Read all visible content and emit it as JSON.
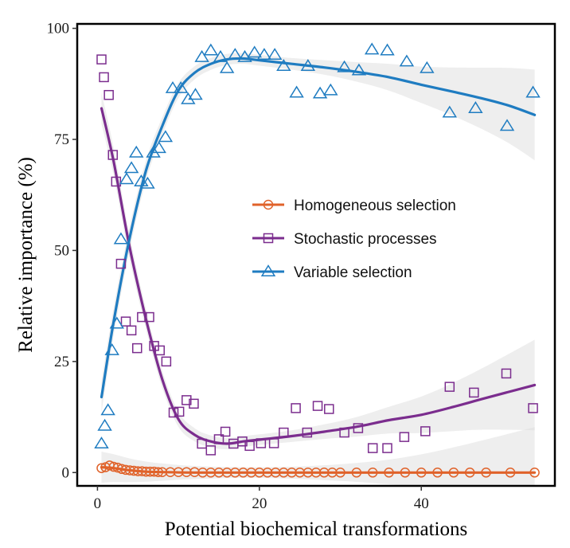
{
  "chart_data": {
    "type": "scatter",
    "title": "",
    "xlabel": "Potential biochemical transformations",
    "ylabel": "Relative importance (%)",
    "xlim": [
      -2.5,
      56.5
    ],
    "ylim": [
      -3,
      101
    ],
    "x_ticks": [
      0,
      20,
      40
    ],
    "y_ticks": [
      0,
      25,
      50,
      75,
      100
    ],
    "grid": false,
    "legend_position": "center-right",
    "series": [
      {
        "name": "Homogeneous selection",
        "color": "#E0622A",
        "marker": "circle",
        "points": [
          [
            0.5,
            1.0
          ],
          [
            1.0,
            1.2
          ],
          [
            1.5,
            1.6
          ],
          [
            2.0,
            1.3
          ],
          [
            2.5,
            1.1
          ],
          [
            3.0,
            0.8
          ],
          [
            3.5,
            0.6
          ],
          [
            4.0,
            0.5
          ],
          [
            4.5,
            0.4
          ],
          [
            5.0,
            0.3
          ],
          [
            5.5,
            0.3
          ],
          [
            6.0,
            0.2
          ],
          [
            6.5,
            0.2
          ],
          [
            7.0,
            0.2
          ],
          [
            7.5,
            0.1
          ],
          [
            8.0,
            0.1
          ],
          [
            9.0,
            0.1
          ],
          [
            10.0,
            0.1
          ],
          [
            11.0,
            0.1
          ],
          [
            12.0,
            0.1
          ],
          [
            13.0,
            0.0
          ],
          [
            14.0,
            0.0
          ],
          [
            15.0,
            0.0
          ],
          [
            16.0,
            0.0
          ],
          [
            17.0,
            0.0
          ],
          [
            18.0,
            0.0
          ],
          [
            19.0,
            0.0
          ],
          [
            20.0,
            0.0
          ],
          [
            21.0,
            0.0
          ],
          [
            22.0,
            0.0
          ],
          [
            23.0,
            0.0
          ],
          [
            24.0,
            0.0
          ],
          [
            25.0,
            0.0
          ],
          [
            26.0,
            0.0
          ],
          [
            27.0,
            0.0
          ],
          [
            28.0,
            0.0
          ],
          [
            29.0,
            0.0
          ],
          [
            30.0,
            0.0
          ],
          [
            32.0,
            0.0
          ],
          [
            34.0,
            0.0
          ],
          [
            36.0,
            0.0
          ],
          [
            38.0,
            0.0
          ],
          [
            40.0,
            0.0
          ],
          [
            42.0,
            0.0
          ],
          [
            44.0,
            0.0
          ],
          [
            46.0,
            0.0
          ],
          [
            48.0,
            0.0
          ],
          [
            51.0,
            0.0
          ],
          [
            54.0,
            0.0
          ]
        ],
        "fit": [
          [
            0.5,
            1.2
          ],
          [
            2.0,
            1.0
          ],
          [
            4.0,
            0.5
          ],
          [
            6.0,
            0.2
          ],
          [
            8.0,
            0.1
          ],
          [
            12.0,
            0.0
          ],
          [
            20.0,
            0.0
          ],
          [
            30.0,
            0.0
          ],
          [
            40.0,
            0.0
          ],
          [
            54.0,
            0.0
          ]
        ]
      },
      {
        "name": "Stochastic processes",
        "color": "#7B2D8E",
        "marker": "square",
        "points": [
          [
            0.5,
            93.0
          ],
          [
            0.8,
            89.0
          ],
          [
            1.4,
            85.0
          ],
          [
            1.9,
            71.5
          ],
          [
            2.3,
            65.5
          ],
          [
            2.9,
            47.0
          ],
          [
            3.5,
            34.0
          ],
          [
            4.2,
            32.0
          ],
          [
            4.9,
            28.0
          ],
          [
            5.5,
            35.0
          ],
          [
            6.4,
            35.0
          ],
          [
            7.0,
            28.5
          ],
          [
            7.7,
            27.5
          ],
          [
            8.5,
            25.0
          ],
          [
            9.4,
            13.5
          ],
          [
            10.1,
            13.7
          ],
          [
            11.0,
            16.3
          ],
          [
            11.9,
            15.5
          ],
          [
            12.9,
            6.5
          ],
          [
            14.0,
            5.0
          ],
          [
            15.0,
            7.5
          ],
          [
            15.8,
            9.2
          ],
          [
            16.8,
            6.5
          ],
          [
            17.9,
            7.0
          ],
          [
            18.8,
            6.0
          ],
          [
            20.2,
            6.6
          ],
          [
            21.8,
            6.6
          ],
          [
            23.0,
            9.0
          ],
          [
            24.5,
            14.5
          ],
          [
            25.9,
            9.0
          ],
          [
            27.2,
            15.0
          ],
          [
            28.6,
            14.3
          ],
          [
            30.5,
            9.0
          ],
          [
            32.2,
            10.0
          ],
          [
            34.0,
            5.5
          ],
          [
            35.8,
            5.5
          ],
          [
            37.9,
            8.0
          ],
          [
            40.5,
            9.3
          ],
          [
            43.5,
            19.3
          ],
          [
            46.5,
            18.0
          ],
          [
            50.5,
            22.3
          ],
          [
            53.8,
            14.5
          ]
        ],
        "fit": [
          [
            0.5,
            82.0
          ],
          [
            2.0,
            70.0
          ],
          [
            4.0,
            50.5
          ],
          [
            6.0,
            34.5
          ],
          [
            8.0,
            21.0
          ],
          [
            10.0,
            12.0
          ],
          [
            12.0,
            8.5
          ],
          [
            14.0,
            7.0
          ],
          [
            16.0,
            6.5
          ],
          [
            18.0,
            7.0
          ],
          [
            20.0,
            7.4
          ],
          [
            24.0,
            8.2
          ],
          [
            28.0,
            9.2
          ],
          [
            32.0,
            10.3
          ],
          [
            36.0,
            11.8
          ],
          [
            40.0,
            13.0
          ],
          [
            44.0,
            14.8
          ],
          [
            48.0,
            16.8
          ],
          [
            54.0,
            19.7
          ]
        ]
      },
      {
        "name": "Variable selection",
        "color": "#1F7CC1",
        "marker": "triangle",
        "points": [
          [
            0.5,
            6.5
          ],
          [
            0.9,
            10.5
          ],
          [
            1.3,
            14.0
          ],
          [
            1.8,
            27.5
          ],
          [
            2.4,
            33.5
          ],
          [
            2.9,
            52.5
          ],
          [
            3.6,
            66.0
          ],
          [
            4.2,
            68.5
          ],
          [
            4.8,
            72.0
          ],
          [
            5.4,
            65.5
          ],
          [
            6.2,
            65.0
          ],
          [
            6.9,
            72.0
          ],
          [
            7.6,
            73.0
          ],
          [
            8.4,
            75.5
          ],
          [
            9.3,
            86.5
          ],
          [
            10.3,
            86.5
          ],
          [
            11.2,
            84.0
          ],
          [
            12.1,
            85.0
          ],
          [
            12.9,
            93.5
          ],
          [
            14.0,
            95.0
          ],
          [
            15.2,
            93.5
          ],
          [
            16.0,
            91.0
          ],
          [
            17.0,
            94.0
          ],
          [
            18.2,
            93.5
          ],
          [
            19.4,
            94.5
          ],
          [
            20.6,
            94.0
          ],
          [
            21.9,
            94.0
          ],
          [
            23.0,
            91.5
          ],
          [
            24.6,
            85.5
          ],
          [
            26.0,
            91.5
          ],
          [
            27.5,
            85.3
          ],
          [
            28.8,
            86.0
          ],
          [
            30.5,
            91.2
          ],
          [
            32.3,
            90.5
          ],
          [
            33.9,
            95.2
          ],
          [
            35.8,
            95.0
          ],
          [
            38.2,
            92.5
          ],
          [
            40.7,
            91.0
          ],
          [
            43.5,
            81.0
          ],
          [
            46.7,
            82.0
          ],
          [
            50.6,
            78.0
          ],
          [
            53.8,
            85.5
          ]
        ],
        "fit": [
          [
            0.5,
            17.0
          ],
          [
            2.0,
            34.0
          ],
          [
            4.0,
            53.0
          ],
          [
            6.0,
            68.0
          ],
          [
            8.0,
            78.0
          ],
          [
            10.0,
            86.0
          ],
          [
            12.0,
            90.0
          ],
          [
            14.0,
            92.0
          ],
          [
            16.0,
            93.0
          ],
          [
            18.0,
            93.2
          ],
          [
            20.0,
            92.8
          ],
          [
            24.0,
            92.0
          ],
          [
            28.0,
            91.2
          ],
          [
            32.0,
            90.2
          ],
          [
            36.0,
            89.0
          ],
          [
            40.0,
            87.3
          ],
          [
            44.0,
            85.7
          ],
          [
            48.0,
            84.0
          ],
          [
            51.0,
            82.5
          ],
          [
            54.0,
            80.5
          ]
        ]
      }
    ]
  }
}
